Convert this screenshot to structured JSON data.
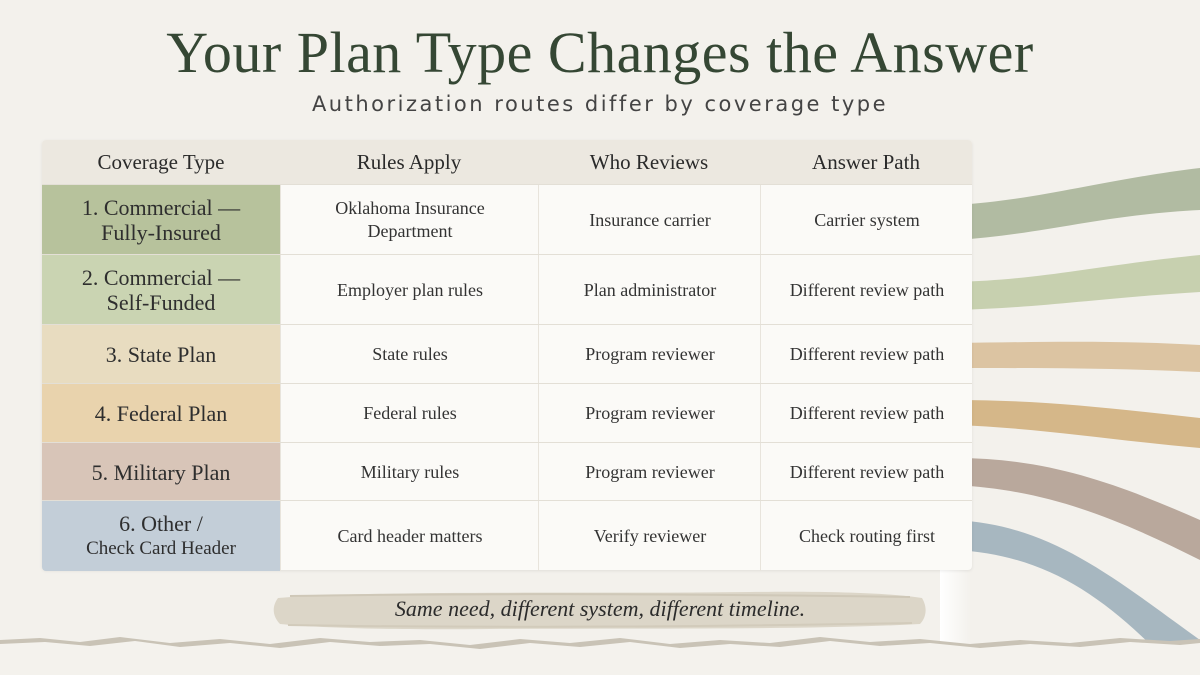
{
  "title": "Your Plan Type Changes the Answer",
  "subtitle": "Authorization routes differ by coverage type",
  "headers": {
    "coverage": "Coverage Type",
    "rules": "Rules Apply",
    "reviewer": "Who Reviews",
    "path": "Answer Path"
  },
  "rows": [
    {
      "line1": "1. Commercial —",
      "line2": "Fully-Insured",
      "rules1": "Oklahoma Insurance",
      "rules2": "Department",
      "reviewer": "Insurance carrier",
      "path": "Carrier system",
      "color": "#b7c29c"
    },
    {
      "line1": "2. Commercial —",
      "line2": "Self-Funded",
      "rules1": "Employer plan rules",
      "rules2": "",
      "reviewer": "Plan administrator",
      "path": "Different review path",
      "color": "#cad4b2"
    },
    {
      "line1": "3. State Plan",
      "line2": "",
      "rules1": "State rules",
      "rules2": "",
      "reviewer": "Program reviewer",
      "path": "Different review path",
      "color": "#e8dcc0"
    },
    {
      "line1": "4. Federal Plan",
      "line2": "",
      "rules1": "Federal rules",
      "rules2": "",
      "reviewer": "Program reviewer",
      "path": "Different review path",
      "color": "#e9d3ad"
    },
    {
      "line1": "5. Military Plan",
      "line2": "",
      "rules1": "Military rules",
      "rules2": "",
      "reviewer": "Program reviewer",
      "path": "Different review path",
      "color": "#d8c5b8"
    },
    {
      "line1": "6. Other /",
      "line2": "Check Card Header",
      "rules1": "Card header matters",
      "rules2": "",
      "reviewer": "Verify reviewer",
      "path": "Check routing first",
      "color": "#c3ced8"
    }
  ],
  "footer_note": "Same need, different system, different timeline.",
  "colors": {
    "title": "#354734",
    "ribbons": [
      "#aab59a",
      "#c2cca8",
      "#d9bf9a",
      "#d2b07e",
      "#b3a093",
      "#9fb0bb"
    ]
  }
}
